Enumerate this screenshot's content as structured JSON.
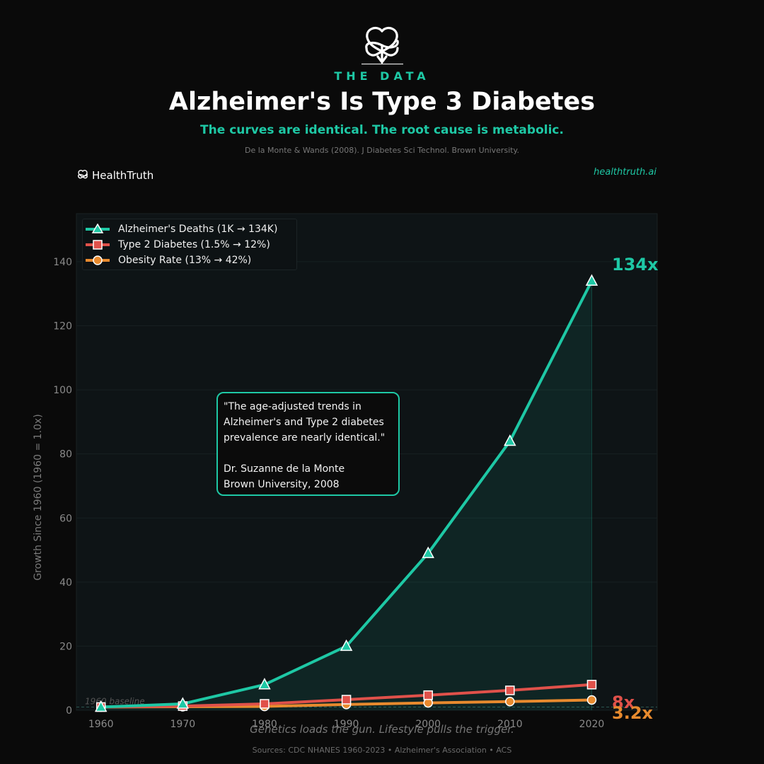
{
  "header": {
    "brand_label": "THE DATA",
    "title": "Alzheimer's Is Type 3 Diabetes",
    "subtitle": "The curves are identical. The root cause is metabolic.",
    "citation": "De la Monte & Wands (2008). J Diabetes Sci Technol. Brown University."
  },
  "wordmark": "HealthTruth",
  "site_url": "healthtruth.ai",
  "quote": {
    "lines": [
      "\"The age-adjusted trends in",
      "Alzheimer's and Type 2 diabetes",
      "prevalence are nearly identical.\""
    ],
    "author": "Dr. Suzanne de la Monte",
    "affiliation": "Brown University, 2008"
  },
  "footer": {
    "tagline": "Genetics loads the gun. Lifestyle pulls the trigger.",
    "sources": "Sources: CDC NHANES 1960-2023  •  Alzheimer's Association  •  ACS"
  },
  "colors": {
    "alz": "#1ec8a5",
    "diabetes": "#e0514a",
    "obesity": "#e88a2e",
    "background": "#0a0a0a",
    "plot_bg": "#0e1416"
  },
  "chart_data": {
    "type": "line",
    "title": "",
    "xlabel": "",
    "ylabel": "Growth Since 1960  (1960 = 1.0x)",
    "x": [
      1960,
      1970,
      1980,
      1990,
      2000,
      2010,
      2020
    ],
    "xlim": [
      1957,
      2028
    ],
    "ylim": [
      0,
      155
    ],
    "x_ticks": [
      1960,
      1970,
      1980,
      1990,
      2000,
      2010,
      2020
    ],
    "y_ticks": [
      0,
      20,
      40,
      60,
      80,
      100,
      120,
      140
    ],
    "grid": true,
    "legend_position": "top-left",
    "baseline": {
      "value": 1,
      "label": "1960 baseline"
    },
    "series": [
      {
        "name": "Alzheimer's Deaths  (1K → 134K)",
        "marker": "triangle",
        "color": "#1ec8a5",
        "values": [
          1,
          2,
          8,
          20,
          49,
          84,
          134
        ],
        "end_label": "134x",
        "fill": true
      },
      {
        "name": "Type 2 Diabetes  (1.5% → 12%)",
        "marker": "square",
        "color": "#e0514a",
        "values": [
          1,
          1.3,
          2,
          3.3,
          4.7,
          6.2,
          8
        ],
        "end_label": "8x"
      },
      {
        "name": "Obesity Rate  (13% → 42%)",
        "marker": "circle",
        "color": "#e88a2e",
        "values": [
          1,
          1.1,
          1.2,
          1.8,
          2.3,
          2.7,
          3.2
        ],
        "end_label": "3.2x"
      }
    ]
  }
}
